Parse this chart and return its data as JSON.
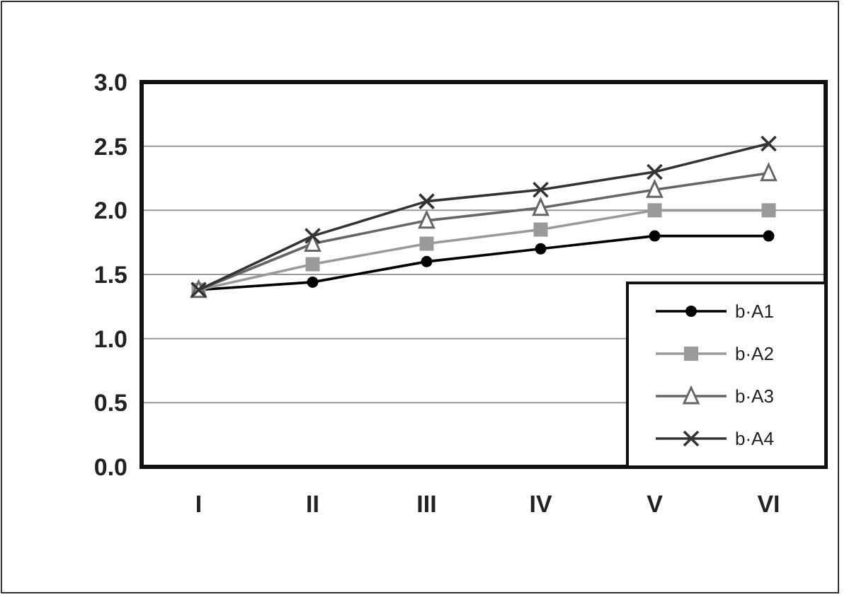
{
  "chart_data": {
    "type": "line",
    "categories": [
      "I",
      "II",
      "III",
      "IV",
      "V",
      "VI"
    ],
    "series": [
      {
        "name": "b·A1",
        "color": "#000000",
        "marker": "circle",
        "values": [
          1.38,
          1.44,
          1.6,
          1.7,
          1.8,
          1.8
        ]
      },
      {
        "name": "b·A2",
        "color": "#9a9a9a",
        "marker": "square",
        "values": [
          1.38,
          1.58,
          1.74,
          1.85,
          2.0,
          2.0
        ]
      },
      {
        "name": "b·A3",
        "color": "#666666",
        "marker": "triangle",
        "values": [
          1.38,
          1.74,
          1.92,
          2.02,
          2.16,
          2.29
        ]
      },
      {
        "name": "b·A4",
        "color": "#333333",
        "marker": "cross",
        "values": [
          1.38,
          1.8,
          2.07,
          2.16,
          2.3,
          2.52
        ]
      }
    ],
    "ylim": [
      0,
      3
    ],
    "yticks": [
      {
        "value": 0,
        "label": "0.0"
      },
      {
        "value": 0.5,
        "label": "0.5"
      },
      {
        "value": 1,
        "label": "1.0"
      },
      {
        "value": 1.5,
        "label": "1.5"
      },
      {
        "value": 2,
        "label": "2.0"
      },
      {
        "value": 2.5,
        "label": "2.5"
      },
      {
        "value": 3,
        "label": "3.0"
      }
    ],
    "grid": "y",
    "legend": "bottom right",
    "line_style": "solid"
  }
}
